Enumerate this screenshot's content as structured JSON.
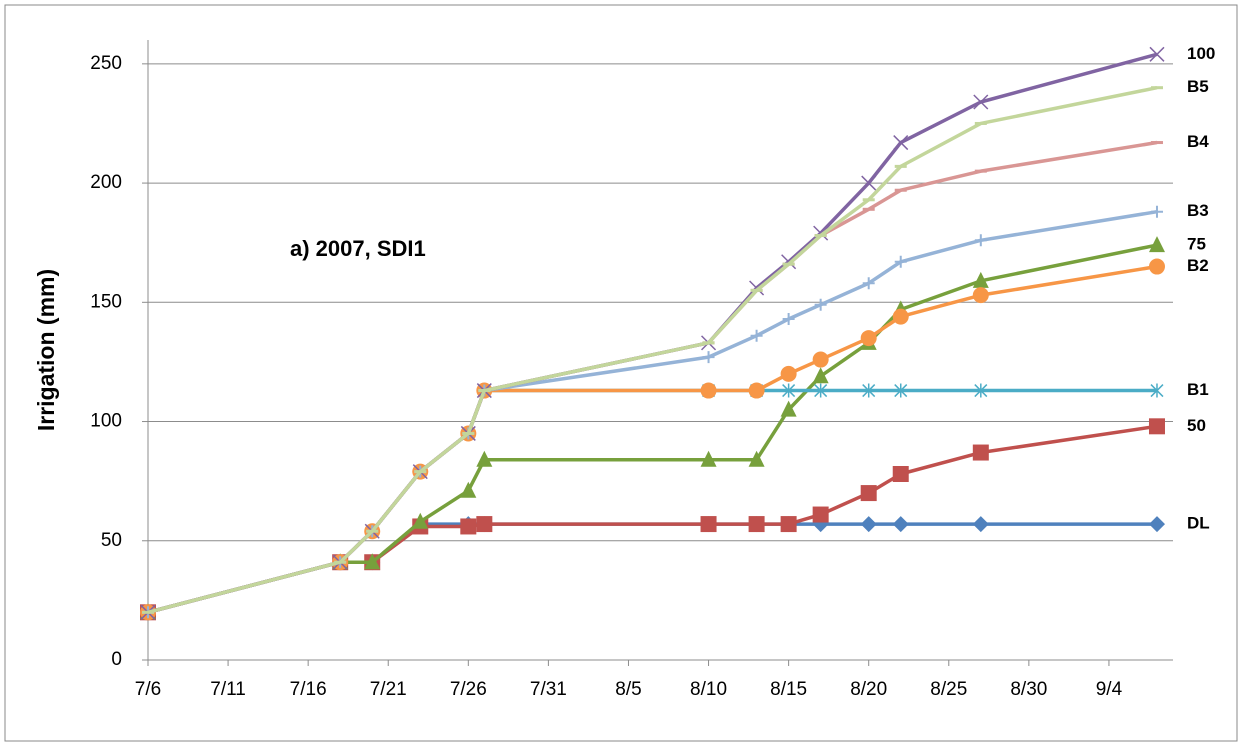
{
  "chart_data": {
    "type": "line",
    "annotation": "a) 2007, SDI1",
    "y_label": "Irrigation (mm)",
    "x": [
      "7/6",
      "7/18",
      "7/20",
      "7/23",
      "7/26",
      "7/27",
      "8/10",
      "8/13",
      "8/15",
      "8/17",
      "8/20",
      "8/22",
      "8/27",
      "9/7"
    ],
    "xlim": [
      "7/6",
      "9/8"
    ],
    "xticks": [
      "7/6",
      "7/11",
      "7/16",
      "7/21",
      "7/26",
      "7/31",
      "8/5",
      "8/10",
      "8/15",
      "8/20",
      "8/25",
      "8/30",
      "9/4"
    ],
    "ylim": [
      0,
      260
    ],
    "yticks": [
      0,
      50,
      100,
      150,
      200,
      250
    ],
    "grid": true,
    "series": [
      {
        "name": "DL",
        "color": "#4f81bd",
        "marker": "diamond",
        "values": [
          20,
          41,
          41,
          57,
          57,
          57,
          57,
          57,
          57,
          57,
          57,
          57,
          57,
          57
        ]
      },
      {
        "name": "50",
        "color": "#c0504d",
        "marker": "square",
        "values": [
          20,
          41,
          41,
          56,
          56,
          57,
          57,
          57,
          57,
          61,
          70,
          78,
          87,
          98
        ]
      },
      {
        "name": "75",
        "color": "#77a03c",
        "marker": "triangle",
        "values": [
          20,
          41,
          41,
          58,
          71,
          84,
          84,
          84,
          105,
          119,
          133,
          147,
          159,
          174
        ]
      },
      {
        "name": "B1",
        "color": "#4bacc6",
        "marker": "asterisk",
        "values": [
          20,
          41,
          54,
          79,
          95,
          113,
          113,
          113,
          113,
          113,
          113,
          113,
          113,
          113
        ]
      },
      {
        "name": "B2",
        "color": "#f79646",
        "marker": "circle",
        "values": [
          20,
          41,
          54,
          79,
          95,
          113,
          113,
          113,
          120,
          126,
          135,
          144,
          153,
          165
        ]
      },
      {
        "name": "B3",
        "color": "#95b3d7",
        "marker": "plus",
        "values": [
          20,
          41,
          54,
          79,
          95,
          113,
          127,
          136,
          143,
          149,
          158,
          167,
          176,
          188
        ]
      },
      {
        "name": "B4",
        "color": "#d99694",
        "marker": "dash",
        "values": [
          20,
          41,
          54,
          79,
          95,
          113,
          133,
          155,
          166,
          178,
          189,
          197,
          205,
          217
        ]
      },
      {
        "name": "100",
        "color": "#8064a2",
        "marker": "cross",
        "values": [
          20,
          41,
          54,
          79,
          95,
          113,
          133,
          156,
          167,
          179,
          200,
          217,
          234,
          254
        ]
      },
      {
        "name": "B5",
        "color": "#c3d69b",
        "marker": "dash",
        "values": [
          20,
          41,
          54,
          79,
          95,
          113,
          133,
          155,
          166,
          178,
          193,
          207,
          225,
          240
        ]
      }
    ]
  }
}
